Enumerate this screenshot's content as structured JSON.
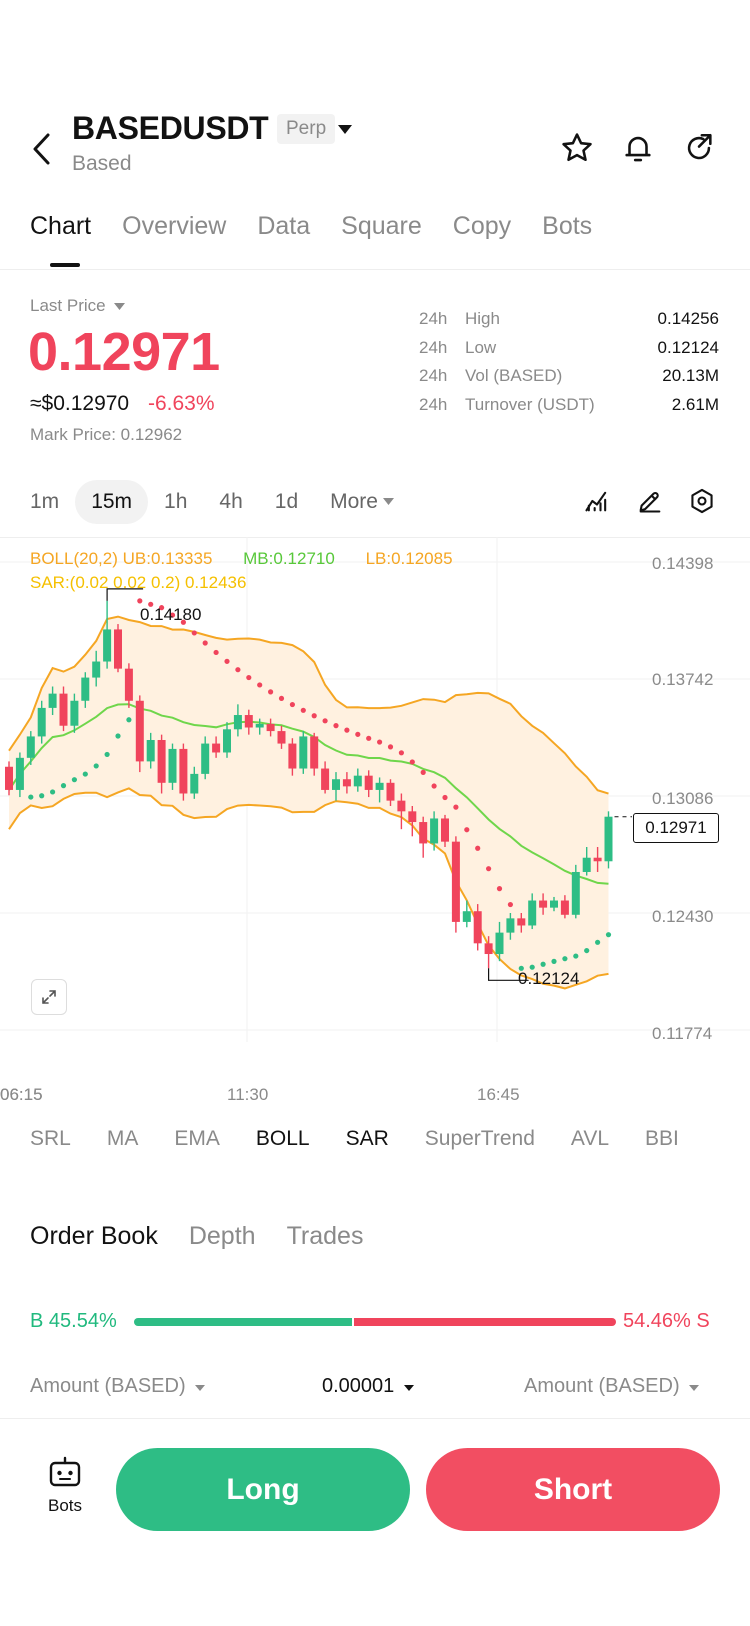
{
  "header": {
    "title": "BASEDUSDT",
    "badge": "Perp",
    "subtitle": "Based"
  },
  "tabs": [
    "Chart",
    "Overview",
    "Data",
    "Square",
    "Copy",
    "Bots"
  ],
  "price": {
    "last_price_label": "Last Price",
    "value": "0.12971",
    "usd": "≈$0.12970",
    "change": "-6.63%",
    "mark_price": "Mark Price: 0.12962"
  },
  "stats": [
    {
      "period": "24h",
      "label": "High",
      "value": "0.14256"
    },
    {
      "period": "24h",
      "label": "Low",
      "value": "0.12124"
    },
    {
      "period": "24h",
      "label": "Vol (BASED)",
      "value": "20.13M"
    },
    {
      "period": "24h",
      "label": "Turnover (USDT)",
      "value": "2.61M"
    }
  ],
  "intervals": [
    "1m",
    "15m",
    "1h",
    "4h",
    "1d",
    "More"
  ],
  "active_interval": "15m",
  "indicators_legend": {
    "boll": "BOLL(20,2) UB:0.13335",
    "mb": "MB:0.12710",
    "lb": "LB:0.12085",
    "sar": "SAR:(0.02 0.02 0.2) 0.12436"
  },
  "chart_data": {
    "type": "candlestick",
    "y_axis": [
      "0.14398",
      "0.13742",
      "0.13086",
      "0.12430",
      "0.11774"
    ],
    "ylim": [
      0.11774,
      0.14398
    ],
    "x_axis": [
      "06:15",
      "11:30",
      "16:45"
    ],
    "high_marker": "0.14180",
    "low_marker": "0.12124",
    "current_price": "0.12971",
    "candles": [
      [
        0.1325,
        0.1312,
        0.1328,
        0.1309
      ],
      [
        0.1312,
        0.133,
        0.1333,
        0.1308
      ],
      [
        0.133,
        0.1342,
        0.1345,
        0.1326
      ],
      [
        0.1342,
        0.1358,
        0.1362,
        0.1338
      ],
      [
        0.1358,
        0.1366,
        0.137,
        0.1354
      ],
      [
        0.1366,
        0.1348,
        0.137,
        0.1345
      ],
      [
        0.1348,
        0.1362,
        0.1366,
        0.1344
      ],
      [
        0.1362,
        0.1375,
        0.1378,
        0.1358
      ],
      [
        0.1375,
        0.1384,
        0.139,
        0.137
      ],
      [
        0.1384,
        0.1402,
        0.1418,
        0.138
      ],
      [
        0.1402,
        0.138,
        0.1405,
        0.1378
      ],
      [
        0.138,
        0.1362,
        0.1383,
        0.1358
      ],
      [
        0.1362,
        0.1328,
        0.1365,
        0.1322
      ],
      [
        0.1328,
        0.134,
        0.1344,
        0.1324
      ],
      [
        0.134,
        0.1316,
        0.1343,
        0.131
      ],
      [
        0.1316,
        0.1335,
        0.1338,
        0.1312
      ],
      [
        0.1335,
        0.131,
        0.1338,
        0.1306
      ],
      [
        0.131,
        0.1321,
        0.1325,
        0.1307
      ],
      [
        0.1321,
        0.1338,
        0.1342,
        0.1318
      ],
      [
        0.1338,
        0.1333,
        0.1342,
        0.133
      ],
      [
        0.1333,
        0.1346,
        0.135,
        0.133
      ],
      [
        0.1346,
        0.1354,
        0.136,
        0.1342
      ],
      [
        0.1354,
        0.1347,
        0.1357,
        0.1343
      ],
      [
        0.1347,
        0.1349,
        0.1352,
        0.1343
      ],
      [
        0.1349,
        0.1345,
        0.1352,
        0.1342
      ],
      [
        0.1345,
        0.1338,
        0.1348,
        0.1335
      ],
      [
        0.1338,
        0.1324,
        0.1341,
        0.132
      ],
      [
        0.1324,
        0.1342,
        0.1345,
        0.1321
      ],
      [
        0.1342,
        0.1324,
        0.1344,
        0.132
      ],
      [
        0.1324,
        0.1312,
        0.1328,
        0.131
      ],
      [
        0.1312,
        0.1318,
        0.1322,
        0.1306
      ],
      [
        0.1318,
        0.1314,
        0.1322,
        0.131
      ],
      [
        0.1314,
        0.132,
        0.1324,
        0.1311
      ],
      [
        0.132,
        0.1312,
        0.1323,
        0.1308
      ],
      [
        0.1312,
        0.1316,
        0.1319,
        0.1305
      ],
      [
        0.1316,
        0.1306,
        0.1318,
        0.1303
      ],
      [
        0.1306,
        0.13,
        0.131,
        0.129
      ],
      [
        0.13,
        0.1294,
        0.1303,
        0.1286
      ],
      [
        0.1294,
        0.1282,
        0.1297,
        0.1274
      ],
      [
        0.1282,
        0.1296,
        0.13,
        0.1278
      ],
      [
        0.1296,
        0.1283,
        0.1298,
        0.128
      ],
      [
        0.1283,
        0.1238,
        0.1286,
        0.1232
      ],
      [
        0.1238,
        0.1244,
        0.125,
        0.1235
      ],
      [
        0.1244,
        0.1226,
        0.1248,
        0.1222
      ],
      [
        0.1226,
        0.122,
        0.123,
        0.1212
      ],
      [
        0.122,
        0.1232,
        0.1238,
        0.1216
      ],
      [
        0.1232,
        0.124,
        0.1243,
        0.1228
      ],
      [
        0.124,
        0.1236,
        0.1243,
        0.1232
      ],
      [
        0.1236,
        0.125,
        0.1254,
        0.1234
      ],
      [
        0.125,
        0.1246,
        0.1254,
        0.1242
      ],
      [
        0.1246,
        0.125,
        0.1252,
        0.1244
      ],
      [
        0.125,
        0.1242,
        0.1253,
        0.124
      ],
      [
        0.1242,
        0.1266,
        0.127,
        0.124
      ],
      [
        0.1266,
        0.1274,
        0.128,
        0.1264
      ],
      [
        0.1274,
        0.1272,
        0.128,
        0.1266
      ],
      [
        0.1272,
        0.1297,
        0.13,
        0.1268
      ]
    ]
  },
  "indicators": [
    "SRL",
    "MA",
    "EMA",
    "BOLL",
    "SAR",
    "SuperTrend",
    "AVL",
    "BBI"
  ],
  "indicators_active": [
    "BOLL",
    "SAR"
  ],
  "order_book": {
    "tabs": [
      "Order Book",
      "Depth",
      "Trades"
    ],
    "buy_label": "B 45.54%",
    "sell_label": "54.46% S",
    "buy_pct": 45.54,
    "col_left": "Amount (BASED)",
    "col_mid": "0.00001",
    "col_right": "Amount (BASED)"
  },
  "actions": {
    "bots": "Bots",
    "long": "Long",
    "short": "Short"
  },
  "colors": {
    "up": "#2ebd85",
    "down": "#f0445c",
    "boll_upper": "#f5a623",
    "boll_mid": "#6fd64b",
    "sar": "#f0445c"
  }
}
